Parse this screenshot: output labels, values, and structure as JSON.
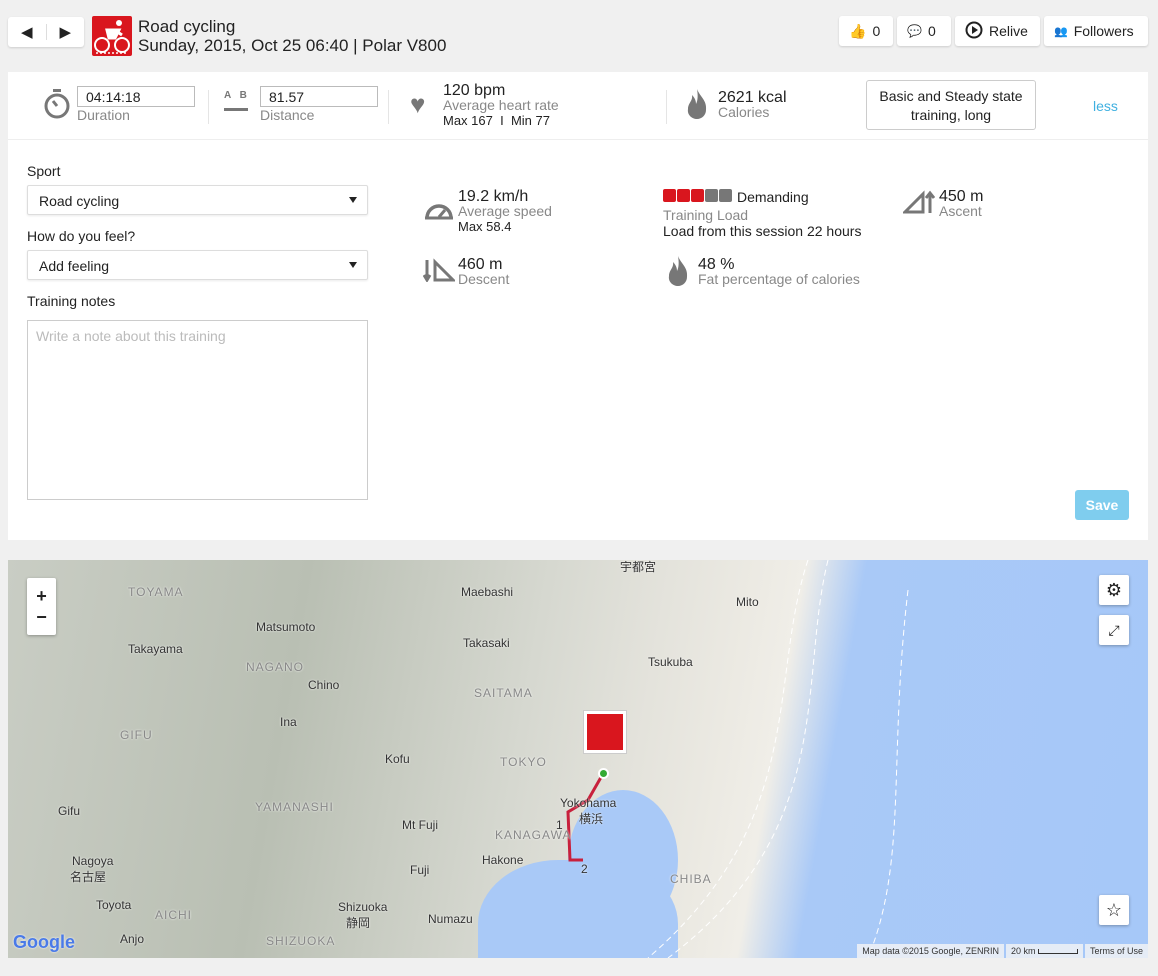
{
  "header": {
    "nav": {
      "prev_icon": "triangle-left-icon",
      "next_icon": "triangle-right-icon"
    },
    "sport_icon": "road-cycling-icon",
    "title": "Road cycling",
    "subtitle": "Sunday, 2015, Oct 25 06:40 | Polar V800",
    "buttons": {
      "likes": "0",
      "comments": "0",
      "relive": "Relive",
      "followers": "Followers"
    }
  },
  "summary": {
    "duration": {
      "value": "04:14:18",
      "label": "Duration"
    },
    "distance": {
      "value": "81.57",
      "label": "Distance",
      "icon_a": "A",
      "icon_b": "B"
    },
    "heart_rate": {
      "value": "120 bpm",
      "label": "Average heart rate",
      "max": "Max 167",
      "sep": "I",
      "min": "Min 77"
    },
    "calories": {
      "value": "2621 kcal",
      "label": "Calories"
    },
    "benefit": "Basic and Steady state training, long",
    "less_link": "less"
  },
  "form": {
    "sport_label": "Sport",
    "sport_value": "Road cycling",
    "feel_label": "How do you feel?",
    "feel_value": "Add feeling",
    "notes_label": "Training notes",
    "notes_placeholder": "Write a note about this training",
    "save": "Save"
  },
  "stats": {
    "speed": {
      "value": "19.2 km/h",
      "label": "Average speed",
      "max": "Max 58.4"
    },
    "training_load": {
      "level": 3,
      "of": 5,
      "value": "Demanding",
      "label": "Training Load",
      "detail": "Load from this session 22 hours",
      "active_color": "#d9161e",
      "inactive_color": "#777777"
    },
    "ascent": {
      "value": "450 m",
      "label": "Ascent"
    },
    "descent": {
      "value": "460 m",
      "label": "Descent"
    },
    "fat": {
      "value": "48 %",
      "label": "Fat percentage of calories"
    }
  },
  "map": {
    "labels": [
      "TOYAMA",
      "Matsumoto",
      "Maebashi",
      "宇都宮",
      "Mito",
      "Takayama",
      "NAGANO",
      "Takasaki",
      "SAITAMA",
      "Tsukuba",
      "Chino",
      "GIFU",
      "Ina",
      "TOKYO",
      "Kofu",
      "YAMANASHI",
      "Yokohama",
      "横浜",
      "KANAGAWA",
      "Gifu",
      "Nagoya",
      "名古屋",
      "Mt Fuji",
      "Fuji",
      "Hakone",
      "Shizuoka",
      "静岡",
      "Numazu",
      "CHIBA",
      "AICHI",
      "SHIZUOKA",
      "Toyota",
      "Anjo"
    ],
    "route_markers": [
      "1",
      "2"
    ],
    "zoom_in": "+",
    "zoom_out": "−",
    "logo": "Google",
    "attribution": "Map data ©2015 Google, ZENRIN",
    "scale": "20 km",
    "terms": "Terms of Use"
  }
}
